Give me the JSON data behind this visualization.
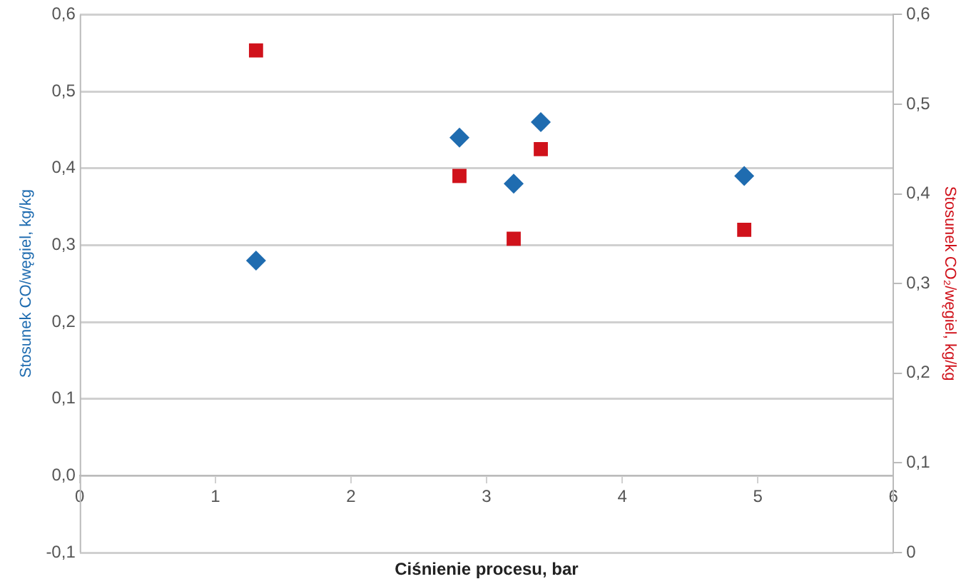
{
  "chart_data": {
    "type": "scatter",
    "xlabel": "Ciśnienie procesu, bar",
    "ylabel": "Stosunek CO/węgiel, kg/kg",
    "y2label": "Stosunek CO₂/węgiel, kg/kg",
    "x": [
      1.3,
      2.8,
      3.2,
      3.4,
      4.9
    ],
    "series": [
      {
        "color": "#1f6cb0",
        "marker": "diamond",
        "axis": "y",
        "values": [
          0.28,
          0.44,
          0.38,
          0.46,
          0.39
        ]
      },
      {
        "color": "#d0121b",
        "marker": "square",
        "axis": "y2",
        "values": [
          0.56,
          0.42,
          0.35,
          0.45,
          0.36
        ]
      }
    ],
    "xlim": [
      0,
      6
    ],
    "xticks": [
      0,
      1,
      2,
      3,
      4,
      5,
      6
    ],
    "ylim": [
      -0.1,
      0.6
    ],
    "yticks": [
      {
        "value": -0.1,
        "label": "-0,1"
      },
      {
        "value": 0,
        "label": "0,0"
      },
      {
        "value": 0.1,
        "label": "0,1"
      },
      {
        "value": 0.2,
        "label": "0,2"
      },
      {
        "value": 0.3,
        "label": "0,3"
      },
      {
        "value": 0.4,
        "label": "0,4"
      },
      {
        "value": 0.5,
        "label": "0,5"
      },
      {
        "value": 0.6,
        "label": "0,6"
      }
    ],
    "y2lim": [
      0,
      0.6
    ],
    "y2ticks": [
      0,
      {
        "value": 0.1,
        "label": "0,1"
      },
      {
        "value": 0.2,
        "label": "0,2"
      },
      {
        "value": 0.3,
        "label": "0,3"
      },
      {
        "value": 0.4,
        "label": "0,4"
      },
      {
        "value": 0.5,
        "label": "0,5"
      },
      {
        "value": 0.6,
        "label": "0,6"
      }
    ],
    "grid": "y",
    "legend": false
  }
}
